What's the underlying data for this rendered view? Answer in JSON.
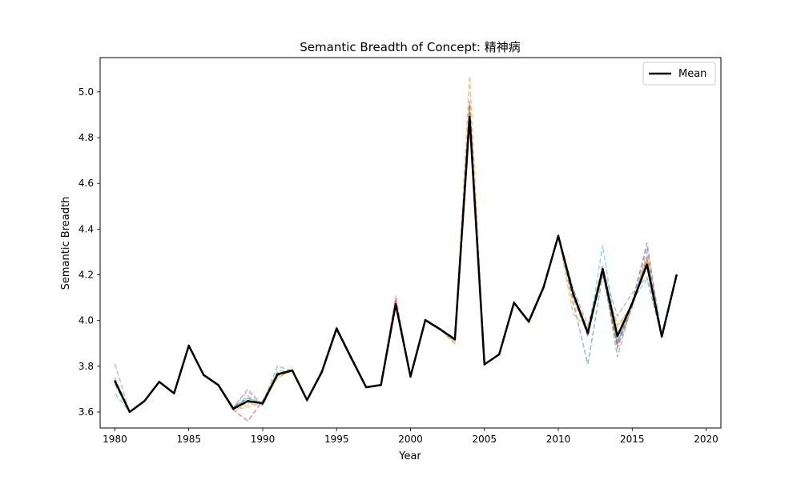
{
  "chart_data": {
    "type": "line",
    "title": "Semantic Breadth of Concept: 精神病",
    "xlabel": "Year",
    "ylabel": "Semantic Breadth",
    "xlim": [
      1979,
      2021
    ],
    "ylim": [
      3.53,
      5.15
    ],
    "xticks": [
      1980,
      1985,
      1990,
      1995,
      2000,
      2005,
      2010,
      2015,
      2020
    ],
    "yticks": [
      3.6,
      3.8,
      4.0,
      4.2,
      4.4,
      4.6,
      4.8,
      5.0
    ],
    "legend": {
      "placement": "top-right",
      "entries": [
        "Mean"
      ]
    },
    "grid": false,
    "mean": {
      "name": "Mean",
      "color": "#000000",
      "x": [
        1980,
        1981,
        1982,
        1983,
        1984,
        1985,
        1986,
        1987,
        1988,
        1989,
        1990,
        1991,
        1992,
        1993,
        1994,
        1995,
        1996,
        1997,
        1998,
        1999,
        2000,
        2001,
        2002,
        2003,
        2004,
        2005,
        2006,
        2007,
        2008,
        2009,
        2010,
        2011,
        2012,
        2013,
        2014,
        2015,
        2016,
        2017,
        2018
      ],
      "y": [
        3.735,
        3.6,
        3.648,
        3.732,
        3.682,
        3.89,
        3.762,
        3.718,
        3.614,
        3.648,
        3.638,
        3.765,
        3.782,
        3.652,
        3.775,
        3.965,
        3.835,
        3.708,
        3.718,
        4.072,
        3.755,
        4.002,
        3.962,
        3.918,
        4.89,
        3.808,
        3.852,
        4.078,
        3.995,
        4.145,
        4.37,
        4.118,
        3.945,
        4.225,
        3.932,
        4.075,
        4.245,
        3.93,
        4.198
      ]
    },
    "samples": [
      {
        "color": "#1f77b4",
        "y": [
          3.73,
          3.6,
          3.65,
          3.73,
          3.68,
          3.89,
          3.76,
          3.72,
          3.62,
          3.66,
          3.63,
          3.77,
          3.78,
          3.65,
          3.78,
          3.97,
          3.84,
          3.71,
          3.72,
          4.06,
          3.76,
          4.0,
          3.96,
          3.91,
          4.96,
          3.81,
          3.85,
          4.08,
          4.0,
          4.15,
          4.37,
          4.08,
          3.81,
          4.2,
          3.89,
          4.08,
          4.34,
          3.93,
          4.2
        ]
      },
      {
        "color": "#ff7f0e",
        "y": [
          3.74,
          3.6,
          3.65,
          3.73,
          3.68,
          3.89,
          3.76,
          3.72,
          3.61,
          3.63,
          3.64,
          3.75,
          3.78,
          3.65,
          3.78,
          3.96,
          3.83,
          3.71,
          3.72,
          4.09,
          3.75,
          4.0,
          3.96,
          3.9,
          5.07,
          3.81,
          3.85,
          4.08,
          3.99,
          4.14,
          4.37,
          4.03,
          3.96,
          4.2,
          3.98,
          4.06,
          4.3,
          3.93,
          4.2
        ]
      },
      {
        "color": "#2ca02c",
        "y": [
          3.72,
          3.6,
          3.65,
          3.73,
          3.68,
          3.89,
          3.76,
          3.72,
          3.62,
          3.66,
          3.64,
          3.8,
          3.78,
          3.65,
          3.78,
          3.96,
          3.84,
          3.71,
          3.72,
          4.08,
          3.76,
          4.0,
          3.96,
          3.92,
          4.92,
          3.81,
          3.85,
          4.08,
          4.0,
          4.15,
          4.37,
          4.12,
          3.95,
          4.23,
          3.84,
          4.08,
          4.26,
          3.93,
          4.2
        ]
      },
      {
        "color": "#d62728",
        "y": [
          3.73,
          3.6,
          3.65,
          3.73,
          3.68,
          3.89,
          3.76,
          3.72,
          3.61,
          3.56,
          3.65,
          3.76,
          3.78,
          3.65,
          3.78,
          3.96,
          3.83,
          3.71,
          3.72,
          4.1,
          3.75,
          4.0,
          3.96,
          3.92,
          4.93,
          3.81,
          3.85,
          4.08,
          4.0,
          4.15,
          4.37,
          4.1,
          3.94,
          4.22,
          3.88,
          4.06,
          4.27,
          3.93,
          4.2
        ]
      },
      {
        "color": "#9467bd",
        "y": [
          3.75,
          3.6,
          3.65,
          3.73,
          3.68,
          3.89,
          3.76,
          3.72,
          3.62,
          3.7,
          3.63,
          3.76,
          3.78,
          3.65,
          3.78,
          3.96,
          3.83,
          3.71,
          3.72,
          4.07,
          3.76,
          4.0,
          3.96,
          3.92,
          4.88,
          3.81,
          3.85,
          4.08,
          4.0,
          4.15,
          4.37,
          4.12,
          3.93,
          4.21,
          3.9,
          4.08,
          4.32,
          3.93,
          4.2
        ]
      },
      {
        "color": "#8c564b",
        "y": [
          3.73,
          3.6,
          3.65,
          3.73,
          3.68,
          3.89,
          3.76,
          3.72,
          3.62,
          3.64,
          3.64,
          3.76,
          3.78,
          3.65,
          3.78,
          3.96,
          3.84,
          3.71,
          3.72,
          4.08,
          3.76,
          4.0,
          3.96,
          3.91,
          4.95,
          3.81,
          3.85,
          4.08,
          4.0,
          4.15,
          4.37,
          4.12,
          3.96,
          4.24,
          3.9,
          4.07,
          4.28,
          3.93,
          4.2
        ]
      },
      {
        "color": "#e377c2",
        "y": [
          3.73,
          3.6,
          3.65,
          3.73,
          3.68,
          3.89,
          3.76,
          3.72,
          3.62,
          3.69,
          3.63,
          3.77,
          3.78,
          3.65,
          3.78,
          3.96,
          3.83,
          3.71,
          3.72,
          4.11,
          3.75,
          4.0,
          3.96,
          3.92,
          4.91,
          3.81,
          3.85,
          4.08,
          4.0,
          4.15,
          4.37,
          4.13,
          3.94,
          4.22,
          3.93,
          4.08,
          4.25,
          3.93,
          4.2
        ]
      },
      {
        "color": "#7f7f7f",
        "y": [
          3.81,
          3.6,
          3.65,
          3.73,
          3.68,
          3.89,
          3.76,
          3.72,
          3.62,
          3.65,
          3.64,
          3.76,
          3.78,
          3.65,
          3.78,
          3.96,
          3.84,
          3.71,
          3.72,
          4.07,
          3.76,
          4.0,
          3.96,
          3.92,
          4.87,
          3.81,
          3.85,
          4.08,
          4.0,
          4.15,
          4.37,
          4.14,
          3.98,
          4.23,
          4.02,
          4.12,
          4.19,
          3.93,
          4.2
        ]
      },
      {
        "color": "#bcbd22",
        "y": [
          3.73,
          3.6,
          3.65,
          3.73,
          3.68,
          3.89,
          3.76,
          3.72,
          3.61,
          3.62,
          3.64,
          3.75,
          3.78,
          3.65,
          3.78,
          3.96,
          3.83,
          3.71,
          3.72,
          4.08,
          3.75,
          4.0,
          3.96,
          3.9,
          4.93,
          3.81,
          3.85,
          4.08,
          4.0,
          4.15,
          4.37,
          4.07,
          3.96,
          4.19,
          3.97,
          4.07,
          4.27,
          3.93,
          4.2
        ]
      },
      {
        "color": "#17becf",
        "y": [
          3.68,
          3.6,
          3.65,
          3.73,
          3.68,
          3.89,
          3.76,
          3.72,
          3.62,
          3.67,
          3.63,
          3.78,
          3.78,
          3.65,
          3.78,
          3.96,
          3.84,
          3.71,
          3.72,
          4.07,
          3.76,
          4.0,
          3.96,
          3.92,
          4.89,
          3.81,
          3.85,
          4.08,
          4.0,
          4.15,
          4.37,
          4.14,
          3.93,
          4.33,
          3.91,
          4.09,
          4.18,
          3.93,
          4.2
        ]
      }
    ]
  }
}
